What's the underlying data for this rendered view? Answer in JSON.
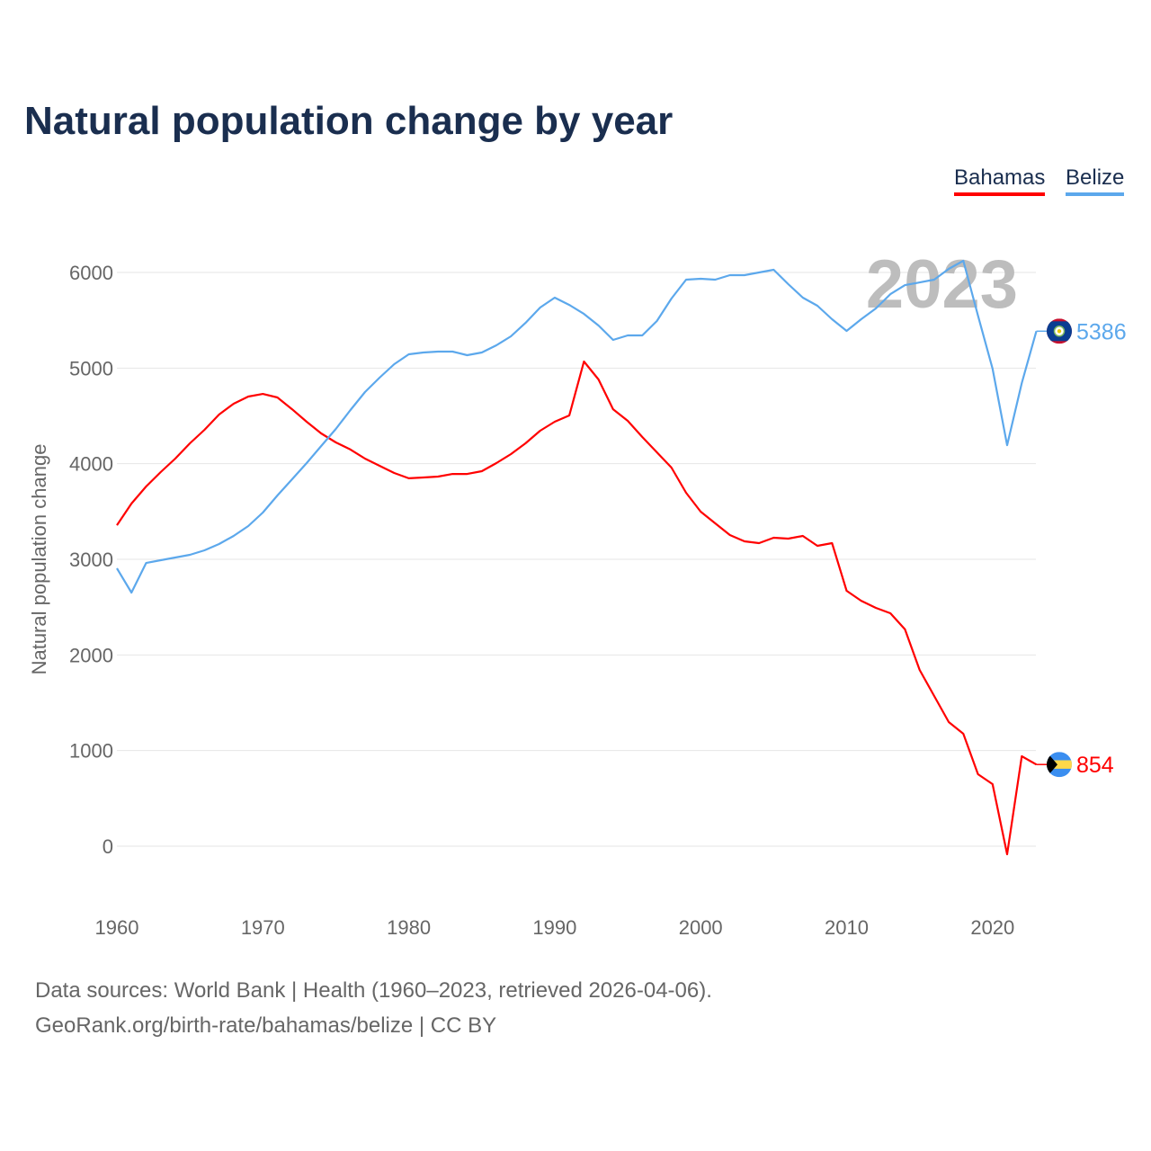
{
  "chart_data": {
    "type": "line",
    "title": "Natural population change by year",
    "xlabel": "",
    "ylabel": "Natural population change",
    "xlim": [
      1960,
      2023
    ],
    "ylim": [
      -500,
      6500
    ],
    "yticks": [
      0,
      1000,
      2000,
      3000,
      4000,
      5000,
      6000
    ],
    "xticks": [
      1960,
      1970,
      1980,
      1990,
      2000,
      2010,
      2020
    ],
    "grid": true,
    "legend_placement": "top-right",
    "year_label": "2023",
    "x": [
      1960,
      1961,
      1962,
      1963,
      1964,
      1965,
      1966,
      1967,
      1968,
      1969,
      1970,
      1971,
      1972,
      1973,
      1974,
      1975,
      1976,
      1977,
      1978,
      1979,
      1980,
      1981,
      1982,
      1983,
      1984,
      1985,
      1986,
      1987,
      1988,
      1989,
      1990,
      1991,
      1992,
      1993,
      1994,
      1995,
      1996,
      1997,
      1998,
      1999,
      2000,
      2001,
      2002,
      2003,
      2004,
      2005,
      2006,
      2007,
      2008,
      2009,
      2010,
      2011,
      2012,
      2013,
      2014,
      2015,
      2016,
      2017,
      2018,
      2019,
      2020,
      2021,
      2022,
      2023
    ],
    "series": [
      {
        "name": "Bahamas",
        "color": "#ff0000",
        "end_label": "854",
        "flag": "bahamas-flag",
        "values": [
          3357,
          3583,
          3762,
          3912,
          4053,
          4213,
          4354,
          4514,
          4627,
          4702,
          4730,
          4693,
          4570,
          4439,
          4317,
          4223,
          4148,
          4053,
          3978,
          3903,
          3847,
          3856,
          3865,
          3893,
          3893,
          3922,
          4006,
          4100,
          4213,
          4345,
          4439,
          4505,
          5069,
          4881,
          4570,
          4448,
          4279,
          4119,
          3959,
          3696,
          3499,
          3376,
          3254,
          3188,
          3169,
          3226,
          3216,
          3245,
          3141,
          3169,
          2671,
          2567,
          2492,
          2436,
          2267,
          1843,
          1571,
          1298,
          1176,
          752,
          649,
          -85,
          940,
          854
        ]
      },
      {
        "name": "Belize",
        "color": "#5ca8ec",
        "end_label": "5386",
        "flag": "belize-flag",
        "values": [
          2906,
          2652,
          2962,
          2991,
          3019,
          3047,
          3094,
          3160,
          3245,
          3348,
          3489,
          3668,
          3837,
          4006,
          4185,
          4364,
          4561,
          4749,
          4900,
          5041,
          5144,
          5163,
          5173,
          5173,
          5135,
          5163,
          5238,
          5332,
          5473,
          5633,
          5737,
          5661,
          5567,
          5445,
          5295,
          5342,
          5342,
          5492,
          5727,
          5925,
          5934,
          5925,
          5972,
          5972,
          6000,
          6028,
          5878,
          5737,
          5652,
          5511,
          5389,
          5511,
          5624,
          5774,
          5868,
          5896,
          5925,
          6038,
          6122,
          5549,
          4994,
          4194,
          4843,
          5386
        ]
      }
    ]
  },
  "footer": {
    "line1": "Data sources: World Bank | Health (1960–2023, retrieved 2026-04-06).",
    "line2": "GeoRank.org/birth-rate/bahamas/belize | CC BY"
  }
}
